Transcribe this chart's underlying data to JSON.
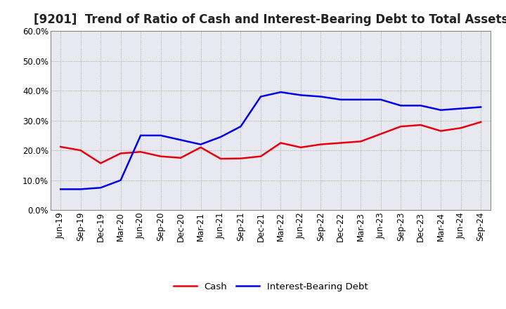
{
  "title": "[9201]  Trend of Ratio of Cash and Interest-Bearing Debt to Total Assets",
  "x_labels": [
    "Jun-19",
    "Sep-19",
    "Dec-19",
    "Mar-20",
    "Jun-20",
    "Sep-20",
    "Dec-20",
    "Mar-21",
    "Jun-21",
    "Sep-21",
    "Dec-21",
    "Mar-22",
    "Jun-22",
    "Sep-22",
    "Dec-22",
    "Mar-23",
    "Jun-23",
    "Sep-23",
    "Dec-23",
    "Mar-24",
    "Jun-24",
    "Sep-24"
  ],
  "cash": [
    21.2,
    20.0,
    15.7,
    19.0,
    19.5,
    18.0,
    17.5,
    21.0,
    17.2,
    17.3,
    18.0,
    22.5,
    21.0,
    22.0,
    22.5,
    23.0,
    25.5,
    28.0,
    28.5,
    26.5,
    27.5,
    29.5
  ],
  "interest_bearing_debt": [
    7.0,
    7.0,
    7.5,
    10.0,
    25.0,
    25.0,
    23.5,
    22.0,
    24.5,
    28.0,
    38.0,
    39.5,
    38.5,
    38.0,
    37.0,
    37.0,
    37.0,
    35.0,
    35.0,
    33.5,
    34.0,
    34.5
  ],
  "cash_color": "#e8000d",
  "ibd_color": "#0000e8",
  "background_color": "#ffffff",
  "plot_bg_color": "#e8e8f0",
  "grid_color": "#aaaacc",
  "ylim": [
    0,
    60
  ],
  "yticks": [
    0,
    10,
    20,
    30,
    40,
    50,
    60
  ],
  "legend_cash": "Cash",
  "legend_ibd": "Interest-Bearing Debt",
  "title_fontsize": 12,
  "axis_fontsize": 8.5,
  "legend_fontsize": 9.5
}
